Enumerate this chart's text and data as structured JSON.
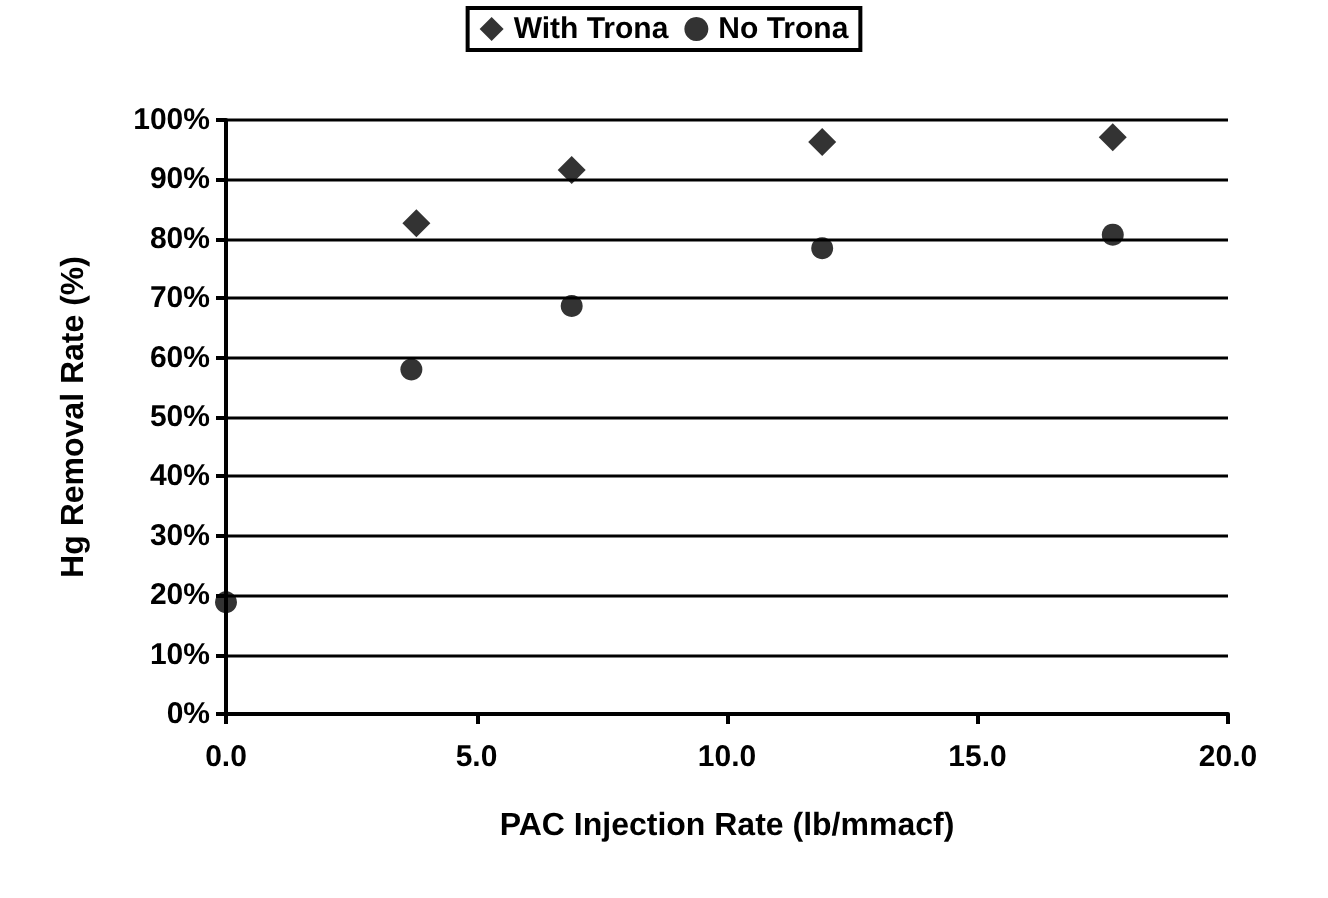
{
  "chart_data": {
    "type": "scatter",
    "xlabel": "PAC Injection Rate (lb/mmacf)",
    "ylabel": "Hg Removal Rate (%)",
    "series": [
      {
        "name": "With Trona",
        "color": "#000000",
        "marker": "diamond",
        "x": [
          3.8,
          6.9,
          11.9,
          17.7
        ],
        "values": [
          82.6,
          91.6,
          96.3,
          97.1
        ]
      },
      {
        "name": "No Trona",
        "color": "#000000",
        "marker": "circle",
        "x": [
          0,
          3.7,
          6.9,
          11.9,
          17.7
        ],
        "values": [
          18.8,
          58,
          68.7,
          78.4,
          80.7
        ]
      }
    ],
    "xlim": [
      0,
      20
    ],
    "xticks": [
      {
        "value": 0,
        "label": "0.0"
      },
      {
        "value": 5,
        "label": "5.0"
      },
      {
        "value": 10,
        "label": "10.0"
      },
      {
        "value": 15,
        "label": "15.0"
      },
      {
        "value": 20,
        "label": "20.0"
      }
    ],
    "ylim": [
      0,
      100
    ],
    "yticks": [
      {
        "value": 0,
        "label": "0%"
      },
      {
        "value": 10,
        "label": "10%"
      },
      {
        "value": 20,
        "label": "20%"
      },
      {
        "value": 30,
        "label": "30%"
      },
      {
        "value": 40,
        "label": "40%"
      },
      {
        "value": 50,
        "label": "50%"
      },
      {
        "value": 60,
        "label": "60%"
      },
      {
        "value": 70,
        "label": "70%"
      },
      {
        "value": 80,
        "label": "80%"
      },
      {
        "value": 90,
        "label": "90%"
      },
      {
        "value": 100,
        "label": "100%"
      }
    ],
    "grid": "y",
    "legend": "top"
  }
}
